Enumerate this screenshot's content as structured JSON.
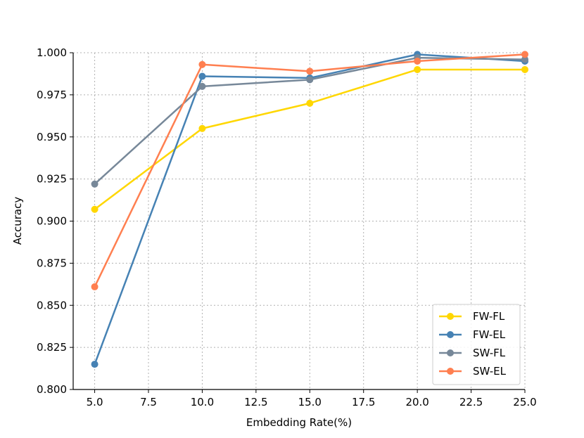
{
  "chart_data": {
    "type": "line",
    "title": "",
    "xlabel": "Embedding Rate(%)",
    "ylabel": "Accuracy",
    "x": [
      5.0,
      10.0,
      15.0,
      20.0,
      25.0
    ],
    "xlim": [
      4.0,
      25.0
    ],
    "ylim": [
      0.8,
      1.0
    ],
    "xticks": [
      "5.0",
      "7.5",
      "10.0",
      "12.5",
      "15.0",
      "17.5",
      "20.0",
      "22.5",
      "25.0"
    ],
    "yticks": [
      "0.800",
      "0.825",
      "0.850",
      "0.875",
      "0.900",
      "0.925",
      "0.950",
      "0.975",
      "1.000"
    ],
    "grid": true,
    "legend_position": "lower-right",
    "series": [
      {
        "name": "FW-FL",
        "color": "#ffd700",
        "values": [
          0.907,
          0.955,
          0.97,
          0.99,
          0.99
        ]
      },
      {
        "name": "FW-EL",
        "color": "#4682b4",
        "values": [
          0.815,
          0.986,
          0.985,
          0.999,
          0.995
        ]
      },
      {
        "name": "SW-FL",
        "color": "#778899",
        "values": [
          0.922,
          0.98,
          0.984,
          0.997,
          0.996
        ]
      },
      {
        "name": "SW-EL",
        "color": "#ff7f50",
        "values": [
          0.861,
          0.993,
          0.989,
          0.995,
          0.999
        ]
      }
    ]
  }
}
